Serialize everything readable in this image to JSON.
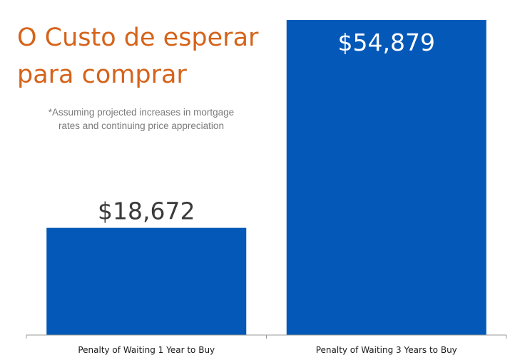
{
  "chart_data": {
    "type": "bar",
    "title_lines": [
      "O Custo de esperar",
      "para comprar"
    ],
    "subtitle_lines": [
      "*Assuming projected increases in mortgage",
      "rates and continuing price appreciation"
    ],
    "categories": [
      "Penalty of Waiting 1 Year to Buy",
      "Penalty of Waiting 3 Years to Buy"
    ],
    "values": [
      18672,
      54879
    ],
    "data_labels": [
      "$18,672",
      "$54,879"
    ],
    "ylim": [
      0,
      56500
    ],
    "grid": false,
    "legend": "none",
    "colors": {
      "bar": "#0458b8",
      "title": "#d5631a",
      "subtitle": "#7a7a7a",
      "axis": "#9a9a9a"
    }
  }
}
